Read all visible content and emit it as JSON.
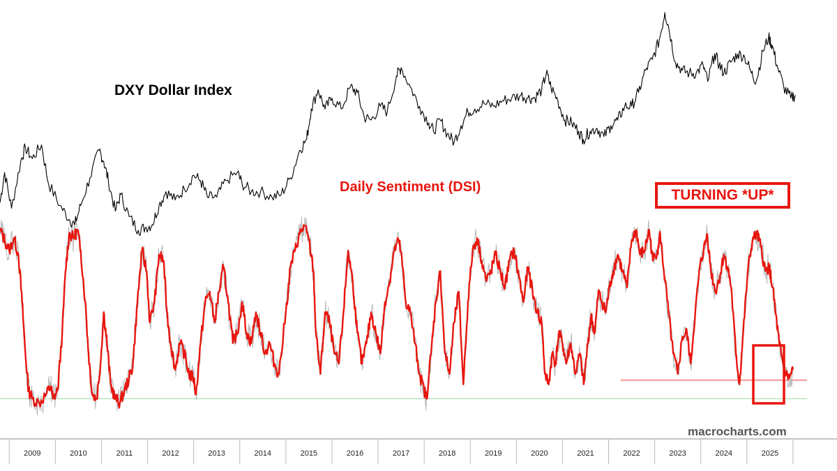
{
  "chart_data": {
    "type": "line",
    "title": "",
    "xlabel": "",
    "ylabel": "",
    "x_ticks": [
      "2009",
      "2010",
      "2011",
      "2012",
      "2013",
      "2014",
      "2015",
      "2016",
      "2017",
      "2018",
      "2019",
      "2020",
      "2021",
      "2022",
      "2023",
      "2024",
      "2025"
    ],
    "xlim": [
      2008.3,
      2026.5
    ],
    "grid": false,
    "series": [
      {
        "name": "DXY Dollar Index",
        "color": "#000000",
        "points": [
          [
            2008.3,
            78.5
          ],
          [
            2008.4,
            84.0
          ],
          [
            2008.55,
            77.5
          ],
          [
            2008.75,
            86.0
          ],
          [
            2008.85,
            88.5
          ],
          [
            2009.0,
            86.5
          ],
          [
            2009.2,
            89.0
          ],
          [
            2009.35,
            82.0
          ],
          [
            2009.6,
            78.0
          ],
          [
            2009.8,
            75.5
          ],
          [
            2009.92,
            74.5
          ],
          [
            2010.05,
            78.0
          ],
          [
            2010.25,
            83.0
          ],
          [
            2010.45,
            88.0
          ],
          [
            2010.55,
            86.0
          ],
          [
            2010.65,
            82.5
          ],
          [
            2010.8,
            77.0
          ],
          [
            2010.92,
            80.0
          ],
          [
            2011.1,
            76.0
          ],
          [
            2011.3,
            73.5
          ],
          [
            2011.45,
            74.0
          ],
          [
            2011.6,
            74.5
          ],
          [
            2011.75,
            78.0
          ],
          [
            2011.9,
            80.5
          ],
          [
            2012.1,
            79.0
          ],
          [
            2012.3,
            81.0
          ],
          [
            2012.5,
            83.5
          ],
          [
            2012.65,
            82.5
          ],
          [
            2012.8,
            79.5
          ],
          [
            2013.0,
            79.5
          ],
          [
            2013.2,
            82.5
          ],
          [
            2013.45,
            84.0
          ],
          [
            2013.55,
            82.0
          ],
          [
            2013.75,
            80.5
          ],
          [
            2013.95,
            80.5
          ],
          [
            2014.2,
            79.5
          ],
          [
            2014.4,
            80.0
          ],
          [
            2014.6,
            83.0
          ],
          [
            2014.8,
            88.0
          ],
          [
            2014.95,
            90.0
          ],
          [
            2015.05,
            95.5
          ],
          [
            2015.2,
            99.0
          ],
          [
            2015.35,
            95.5
          ],
          [
            2015.5,
            97.5
          ],
          [
            2015.7,
            95.5
          ],
          [
            2015.9,
            99.5
          ],
          [
            2016.05,
            98.5
          ],
          [
            2016.2,
            94.0
          ],
          [
            2016.35,
            93.5
          ],
          [
            2016.55,
            96.0
          ],
          [
            2016.7,
            95.0
          ],
          [
            2016.9,
            101.5
          ],
          [
            2017.0,
            103.0
          ],
          [
            2017.2,
            99.5
          ],
          [
            2017.4,
            96.0
          ],
          [
            2017.6,
            93.0
          ],
          [
            2017.7,
            91.5
          ],
          [
            2017.85,
            93.5
          ],
          [
            2018.0,
            91.0
          ],
          [
            2018.15,
            89.5
          ],
          [
            2018.3,
            92.5
          ],
          [
            2018.45,
            95.0
          ],
          [
            2018.6,
            95.5
          ],
          [
            2018.8,
            96.5
          ],
          [
            2019.0,
            96.0
          ],
          [
            2019.2,
            97.0
          ],
          [
            2019.4,
            97.5
          ],
          [
            2019.6,
            98.0
          ],
          [
            2019.75,
            97.5
          ],
          [
            2019.9,
            97.5
          ],
          [
            2020.05,
            99.0
          ],
          [
            2020.15,
            102.0
          ],
          [
            2020.25,
            99.5
          ],
          [
            2020.4,
            97.0
          ],
          [
            2020.55,
            93.5
          ],
          [
            2020.7,
            93.0
          ],
          [
            2020.85,
            91.5
          ],
          [
            2020.95,
            90.0
          ],
          [
            2021.1,
            91.5
          ],
          [
            2021.25,
            92.0
          ],
          [
            2021.4,
            90.5
          ],
          [
            2021.55,
            92.5
          ],
          [
            2021.7,
            93.5
          ],
          [
            2021.85,
            96.0
          ],
          [
            2022.0,
            96.0
          ],
          [
            2022.15,
            98.5
          ],
          [
            2022.3,
            102.5
          ],
          [
            2022.45,
            104.5
          ],
          [
            2022.6,
            108.0
          ],
          [
            2022.72,
            113.0
          ],
          [
            2022.8,
            110.5
          ],
          [
            2022.95,
            104.0
          ],
          [
            2023.1,
            102.5
          ],
          [
            2023.25,
            102.0
          ],
          [
            2023.4,
            102.0
          ],
          [
            2023.55,
            103.5
          ],
          [
            2023.65,
            100.5
          ],
          [
            2023.8,
            105.5
          ],
          [
            2023.9,
            103.5
          ],
          [
            2024.0,
            102.0
          ],
          [
            2024.15,
            104.0
          ],
          [
            2024.3,
            105.5
          ],
          [
            2024.45,
            105.0
          ],
          [
            2024.6,
            102.0
          ],
          [
            2024.7,
            100.5
          ],
          [
            2024.85,
            106.0
          ],
          [
            2024.97,
            108.5
          ],
          [
            2025.05,
            107.0
          ],
          [
            2025.15,
            103.5
          ],
          [
            2025.3,
            99.5
          ],
          [
            2025.45,
            97.5
          ],
          [
            2025.55,
            98.0
          ]
        ]
      },
      {
        "name": "Daily Sentiment (DSI)",
        "color": "#e8160f",
        "points": [
          [
            2008.3,
            90
          ],
          [
            2008.4,
            85
          ],
          [
            2008.5,
            80
          ],
          [
            2008.6,
            86
          ],
          [
            2008.7,
            78
          ],
          [
            2008.78,
            55
          ],
          [
            2008.85,
            30
          ],
          [
            2008.92,
            12
          ],
          [
            2009.0,
            8
          ],
          [
            2009.15,
            6
          ],
          [
            2009.3,
            10
          ],
          [
            2009.4,
            14
          ],
          [
            2009.45,
            8
          ],
          [
            2009.55,
            12
          ],
          [
            2009.65,
            40
          ],
          [
            2009.72,
            70
          ],
          [
            2009.8,
            88
          ],
          [
            2009.9,
            86
          ],
          [
            2009.98,
            90
          ],
          [
            2010.05,
            80
          ],
          [
            2010.15,
            55
          ],
          [
            2010.22,
            30
          ],
          [
            2010.3,
            10
          ],
          [
            2010.4,
            8
          ],
          [
            2010.48,
            25
          ],
          [
            2010.55,
            50
          ],
          [
            2010.62,
            35
          ],
          [
            2010.7,
            15
          ],
          [
            2010.8,
            8
          ],
          [
            2010.9,
            6
          ],
          [
            2011.0,
            12
          ],
          [
            2011.1,
            18
          ],
          [
            2011.18,
            24
          ],
          [
            2011.28,
            55
          ],
          [
            2011.38,
            80
          ],
          [
            2011.48,
            70
          ],
          [
            2011.55,
            45
          ],
          [
            2011.65,
            55
          ],
          [
            2011.75,
            78
          ],
          [
            2011.85,
            75
          ],
          [
            2011.92,
            50
          ],
          [
            2012.0,
            35
          ],
          [
            2012.1,
            22
          ],
          [
            2012.2,
            35
          ],
          [
            2012.3,
            30
          ],
          [
            2012.4,
            20
          ],
          [
            2012.5,
            18
          ],
          [
            2012.55,
            10
          ],
          [
            2012.65,
            35
          ],
          [
            2012.75,
            55
          ],
          [
            2012.85,
            60
          ],
          [
            2012.95,
            45
          ],
          [
            2013.05,
            60
          ],
          [
            2013.15,
            72
          ],
          [
            2013.25,
            55
          ],
          [
            2013.35,
            35
          ],
          [
            2013.45,
            40
          ],
          [
            2013.55,
            55
          ],
          [
            2013.65,
            40
          ],
          [
            2013.75,
            35
          ],
          [
            2013.85,
            50
          ],
          [
            2013.95,
            40
          ],
          [
            2014.05,
            30
          ],
          [
            2014.15,
            35
          ],
          [
            2014.25,
            25
          ],
          [
            2014.35,
            20
          ],
          [
            2014.5,
            50
          ],
          [
            2014.6,
            72
          ],
          [
            2014.7,
            80
          ],
          [
            2014.8,
            88
          ],
          [
            2014.9,
            92
          ],
          [
            2015.0,
            85
          ],
          [
            2015.1,
            70
          ],
          [
            2015.15,
            40
          ],
          [
            2015.25,
            20
          ],
          [
            2015.35,
            50
          ],
          [
            2015.45,
            45
          ],
          [
            2015.55,
            30
          ],
          [
            2015.65,
            25
          ],
          [
            2015.75,
            50
          ],
          [
            2015.85,
            80
          ],
          [
            2015.95,
            65
          ],
          [
            2016.05,
            40
          ],
          [
            2016.15,
            25
          ],
          [
            2016.25,
            35
          ],
          [
            2016.35,
            50
          ],
          [
            2016.45,
            40
          ],
          [
            2016.55,
            30
          ],
          [
            2016.65,
            55
          ],
          [
            2016.75,
            65
          ],
          [
            2016.85,
            80
          ],
          [
            2016.95,
            85
          ],
          [
            2017.02,
            75
          ],
          [
            2017.1,
            55
          ],
          [
            2017.2,
            50
          ],
          [
            2017.3,
            35
          ],
          [
            2017.4,
            20
          ],
          [
            2017.5,
            12
          ],
          [
            2017.55,
            8
          ],
          [
            2017.65,
            30
          ],
          [
            2017.75,
            55
          ],
          [
            2017.85,
            70
          ],
          [
            2017.95,
            30
          ],
          [
            2018.05,
            20
          ],
          [
            2018.15,
            45
          ],
          [
            2018.25,
            60
          ],
          [
            2018.35,
            15
          ],
          [
            2018.45,
            55
          ],
          [
            2018.55,
            80
          ],
          [
            2018.65,
            86
          ],
          [
            2018.75,
            75
          ],
          [
            2018.85,
            65
          ],
          [
            2018.95,
            70
          ],
          [
            2019.05,
            78
          ],
          [
            2019.15,
            70
          ],
          [
            2019.25,
            62
          ],
          [
            2019.35,
            75
          ],
          [
            2019.45,
            80
          ],
          [
            2019.55,
            68
          ],
          [
            2019.65,
            55
          ],
          [
            2019.75,
            72
          ],
          [
            2019.85,
            60
          ],
          [
            2019.95,
            50
          ],
          [
            2020.05,
            45
          ],
          [
            2020.12,
            20
          ],
          [
            2020.2,
            15
          ],
          [
            2020.28,
            30
          ],
          [
            2020.35,
            25
          ],
          [
            2020.42,
            40
          ],
          [
            2020.5,
            35
          ],
          [
            2020.58,
            25
          ],
          [
            2020.68,
            35
          ],
          [
            2020.78,
            20
          ],
          [
            2020.88,
            30
          ],
          [
            2020.96,
            15
          ],
          [
            2021.05,
            35
          ],
          [
            2021.12,
            48
          ],
          [
            2021.2,
            40
          ],
          [
            2021.28,
            60
          ],
          [
            2021.36,
            55
          ],
          [
            2021.44,
            50
          ],
          [
            2021.52,
            62
          ],
          [
            2021.6,
            70
          ],
          [
            2021.7,
            78
          ],
          [
            2021.8,
            70
          ],
          [
            2021.9,
            62
          ],
          [
            2022.0,
            85
          ],
          [
            2022.1,
            90
          ],
          [
            2022.18,
            78
          ],
          [
            2022.28,
            80
          ],
          [
            2022.38,
            90
          ],
          [
            2022.46,
            75
          ],
          [
            2022.56,
            80
          ],
          [
            2022.62,
            88
          ],
          [
            2022.7,
            70
          ],
          [
            2022.8,
            50
          ],
          [
            2022.9,
            30
          ],
          [
            2023.0,
            20
          ],
          [
            2023.1,
            38
          ],
          [
            2023.2,
            40
          ],
          [
            2023.28,
            25
          ],
          [
            2023.38,
            50
          ],
          [
            2023.48,
            72
          ],
          [
            2023.56,
            80
          ],
          [
            2023.64,
            88
          ],
          [
            2023.72,
            70
          ],
          [
            2023.82,
            60
          ],
          [
            2023.92,
            68
          ],
          [
            2024.0,
            78
          ],
          [
            2024.08,
            72
          ],
          [
            2024.16,
            62
          ],
          [
            2024.26,
            30
          ],
          [
            2024.34,
            15
          ],
          [
            2024.42,
            40
          ],
          [
            2024.52,
            70
          ],
          [
            2024.62,
            85
          ],
          [
            2024.72,
            88
          ],
          [
            2024.8,
            82
          ],
          [
            2024.9,
            70
          ],
          [
            2024.98,
            72
          ],
          [
            2025.06,
            62
          ],
          [
            2025.12,
            50
          ],
          [
            2025.2,
            35
          ],
          [
            2025.26,
            28
          ],
          [
            2025.34,
            20
          ],
          [
            2025.42,
            18
          ],
          [
            2025.5,
            22
          ]
        ]
      }
    ],
    "reference_lines": [
      {
        "color": "#b9e3bf",
        "value": 8
      },
      {
        "color": "#f4a6a6",
        "value": 17
      }
    ],
    "annotations": {
      "dxy_label": "DXY Dollar Index",
      "dsi_label": "Daily Sentiment (DSI)",
      "callout": "TURNING *UP*",
      "watermark": "macrocharts.com"
    }
  }
}
